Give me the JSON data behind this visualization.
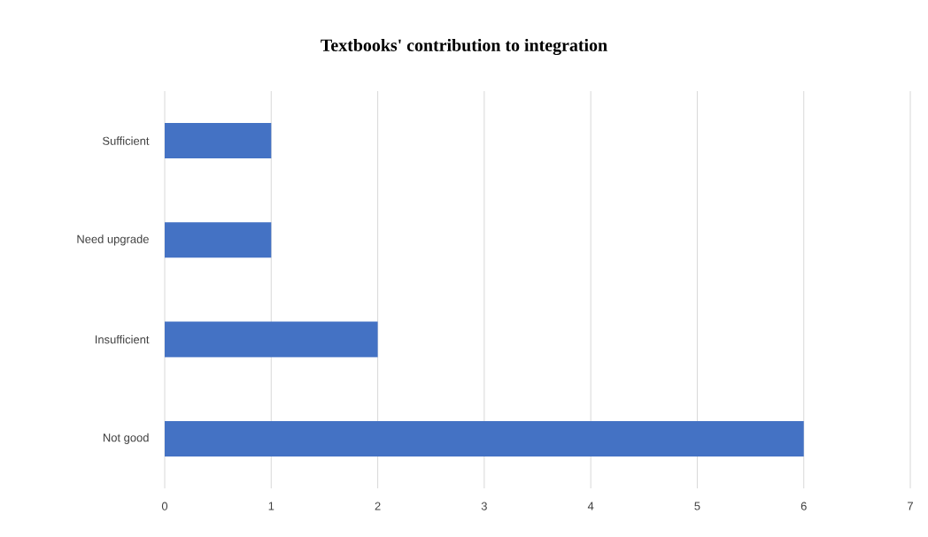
{
  "chart_data": {
    "type": "bar",
    "orientation": "horizontal",
    "title": "Textbooks' contribution to integration",
    "categories": [
      "Sufficient",
      "Need upgrade",
      "Insufficient",
      "Not good"
    ],
    "values": [
      1,
      1,
      2,
      6
    ],
    "color": "#4472c4",
    "xlim": [
      0,
      7
    ],
    "xticks": [
      0,
      1,
      2,
      3,
      4,
      5,
      6,
      7
    ],
    "grid": "x"
  }
}
